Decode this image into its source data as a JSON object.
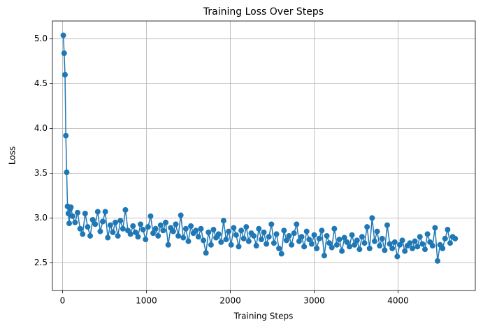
{
  "chart_data": {
    "type": "line",
    "title": "Training Loss Over Steps",
    "x_label": "Training Steps",
    "y_label": "Loss",
    "x": [
      10,
      20,
      30,
      40,
      50,
      60,
      70,
      80,
      90,
      100,
      120,
      150,
      180,
      210,
      240,
      270,
      300,
      330,
      360,
      390,
      420,
      450,
      480,
      510,
      540,
      570,
      600,
      630,
      660,
      690,
      720,
      750,
      780,
      810,
      840,
      870,
      900,
      930,
      960,
      990,
      1020,
      1050,
      1080,
      1110,
      1140,
      1170,
      1200,
      1230,
      1260,
      1290,
      1320,
      1350,
      1380,
      1410,
      1440,
      1470,
      1500,
      1530,
      1560,
      1590,
      1620,
      1650,
      1680,
      1710,
      1740,
      1770,
      1800,
      1830,
      1860,
      1890,
      1920,
      1950,
      1980,
      2010,
      2040,
      2070,
      2100,
      2130,
      2160,
      2190,
      2220,
      2250,
      2280,
      2310,
      2340,
      2370,
      2400,
      2430,
      2460,
      2490,
      2520,
      2550,
      2580,
      2610,
      2640,
      2670,
      2700,
      2730,
      2760,
      2790,
      2820,
      2850,
      2880,
      2910,
      2940,
      2970,
      3000,
      3030,
      3060,
      3090,
      3120,
      3150,
      3180,
      3210,
      3240,
      3270,
      3300,
      3330,
      3360,
      3390,
      3420,
      3450,
      3480,
      3510,
      3540,
      3570,
      3600,
      3630,
      3660,
      3690,
      3720,
      3750,
      3780,
      3810,
      3840,
      3870,
      3900,
      3930,
      3960,
      3990,
      4020,
      4050,
      4080,
      4110,
      4140,
      4170,
      4200,
      4230,
      4260,
      4290,
      4320,
      4350,
      4380,
      4410,
      4440,
      4470,
      4500,
      4530,
      4560,
      4590,
      4620,
      4650,
      4680
    ],
    "series": [
      {
        "name": "Loss",
        "color": "#1f77b4",
        "values": [
          5.04,
          4.84,
          4.6,
          3.92,
          3.51,
          3.13,
          3.05,
          2.94,
          3.1,
          3.12,
          3.02,
          2.95,
          3.06,
          2.88,
          2.82,
          3.05,
          2.9,
          2.8,
          2.98,
          2.93,
          3.07,
          2.85,
          2.96,
          3.07,
          2.78,
          2.92,
          2.84,
          2.95,
          2.8,
          2.97,
          2.88,
          3.09,
          2.86,
          2.82,
          2.91,
          2.84,
          2.79,
          2.93,
          2.87,
          2.76,
          2.9,
          3.02,
          2.83,
          2.88,
          2.8,
          2.92,
          2.86,
          2.95,
          2.7,
          2.89,
          2.85,
          2.93,
          2.8,
          3.03,
          2.78,
          2.88,
          2.74,
          2.91,
          2.83,
          2.86,
          2.79,
          2.88,
          2.75,
          2.61,
          2.84,
          2.7,
          2.87,
          2.78,
          2.82,
          2.73,
          2.97,
          2.76,
          2.85,
          2.7,
          2.89,
          2.81,
          2.68,
          2.86,
          2.77,
          2.9,
          2.74,
          2.83,
          2.8,
          2.69,
          2.88,
          2.76,
          2.84,
          2.71,
          2.79,
          2.93,
          2.72,
          2.82,
          2.66,
          2.6,
          2.86,
          2.75,
          2.8,
          2.7,
          2.83,
          2.93,
          2.74,
          2.79,
          2.68,
          2.85,
          2.76,
          2.71,
          2.81,
          2.66,
          2.77,
          2.86,
          2.58,
          2.8,
          2.72,
          2.67,
          2.88,
          2.7,
          2.76,
          2.63,
          2.78,
          2.73,
          2.68,
          2.81,
          2.7,
          2.75,
          2.65,
          2.79,
          2.72,
          2.9,
          2.66,
          3.0,
          2.74,
          2.85,
          2.69,
          2.77,
          2.64,
          2.92,
          2.71,
          2.66,
          2.73,
          2.57,
          2.7,
          2.75,
          2.63,
          2.69,
          2.72,
          2.66,
          2.74,
          2.68,
          2.79,
          2.71,
          2.65,
          2.82,
          2.73,
          2.69,
          2.89,
          2.52,
          2.7,
          2.66,
          2.77,
          2.87,
          2.72,
          2.79,
          2.77
        ]
      }
    ],
    "xlim": [
      -120,
      4920
    ],
    "ylim": [
      2.19,
      5.2
    ],
    "xticks": [
      0,
      1000,
      2000,
      3000,
      4000
    ],
    "yticks": [
      2.5,
      {
        "value": 3,
        "label": "3.0"
      },
      3.5,
      {
        "value": 4,
        "label": "4.0"
      },
      4.5,
      {
        "value": 5,
        "label": "5.0"
      }
    ],
    "grid": true
  }
}
